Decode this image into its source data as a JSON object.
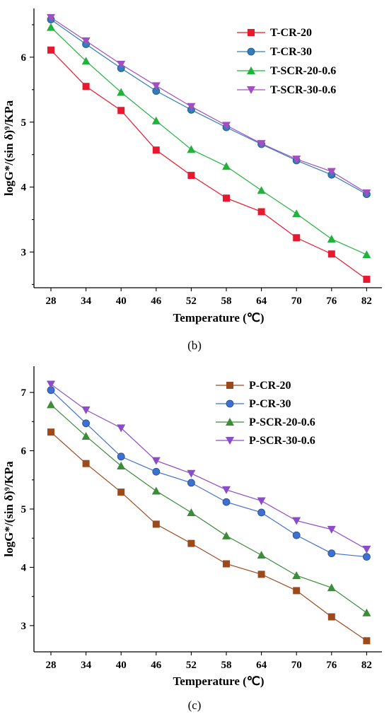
{
  "panels": [
    {
      "label": "(b)",
      "chart_data": {
        "type": "line",
        "x": [
          28,
          34,
          40,
          46,
          52,
          58,
          64,
          70,
          76,
          82
        ],
        "xlabel": "Temperature (℃)",
        "ylabel": "logG*/(sin δ)⁹/KPa",
        "xticks": [
          "28",
          "34",
          "40",
          "46",
          "52",
          "58",
          "64",
          "70",
          "76",
          "82"
        ],
        "yticks": [
          3,
          4,
          5,
          6
        ],
        "ylim": [
          2.45,
          6.75
        ],
        "legend_position": "top-right",
        "series": [
          {
            "name": "T-CR-20",
            "marker": "square",
            "color": "#e8182e",
            "values": [
              6.11,
              5.55,
              5.18,
              4.57,
              4.18,
              3.83,
              3.62,
              3.22,
              2.97,
              2.58
            ]
          },
          {
            "name": "T-CR-30",
            "marker": "circle",
            "color": "#2e7fb8",
            "values": [
              6.58,
              6.2,
              5.83,
              5.48,
              5.19,
              4.92,
              4.66,
              4.41,
              4.19,
              3.89
            ]
          },
          {
            "name": "T-SCR-20-0.6",
            "marker": "triangle-up",
            "color": "#20b33c",
            "values": [
              6.46,
              5.94,
              5.46,
              5.02,
              4.58,
              4.32,
              3.95,
              3.59,
              3.2,
              2.96
            ]
          },
          {
            "name": "T-SCR-30-0.6",
            "marker": "triangle-down",
            "color": "#a24fc1",
            "values": [
              6.61,
              6.25,
              5.89,
              5.56,
              5.24,
              4.95,
              4.67,
              4.43,
              4.24,
              3.91
            ]
          }
        ]
      }
    },
    {
      "label": "(c)",
      "chart_data": {
        "type": "line",
        "x": [
          28,
          34,
          40,
          46,
          52,
          58,
          64,
          70,
          76,
          82
        ],
        "xlabel": "Temperature (℃)",
        "ylabel": "logG*/(sin δ)⁹/KPa",
        "xticks": [
          "28",
          "34",
          "40",
          "46",
          "52",
          "58",
          "64",
          "70",
          "76",
          "82"
        ],
        "yticks": [
          3,
          4,
          5,
          6,
          7
        ],
        "ylim": [
          2.55,
          7.45
        ],
        "legend_position": "top-right",
        "series": [
          {
            "name": "P-CR-20",
            "marker": "square",
            "color": "#9c4a1c",
            "values": [
              6.32,
              5.78,
              5.29,
              4.74,
              4.41,
              4.06,
              3.88,
              3.6,
              3.15,
              2.74
            ]
          },
          {
            "name": "P-CR-30",
            "marker": "circle",
            "color": "#3f6fd1",
            "values": [
              7.04,
              6.47,
              5.9,
              5.64,
              5.45,
              5.12,
              4.94,
              4.55,
              4.24,
              4.18
            ]
          },
          {
            "name": "P-SCR-20-0.6",
            "marker": "triangle-up",
            "color": "#3c8c3a",
            "values": [
              6.79,
              6.25,
              5.74,
              5.31,
              4.94,
              4.54,
              4.21,
              3.86,
              3.65,
              3.22
            ]
          },
          {
            "name": "P-SCR-30-0.6",
            "marker": "triangle-down",
            "color": "#8a4cc9",
            "values": [
              7.14,
              6.7,
              6.39,
              5.83,
              5.61,
              5.33,
              5.14,
              4.8,
              4.65,
              4.31
            ]
          }
        ]
      }
    }
  ]
}
